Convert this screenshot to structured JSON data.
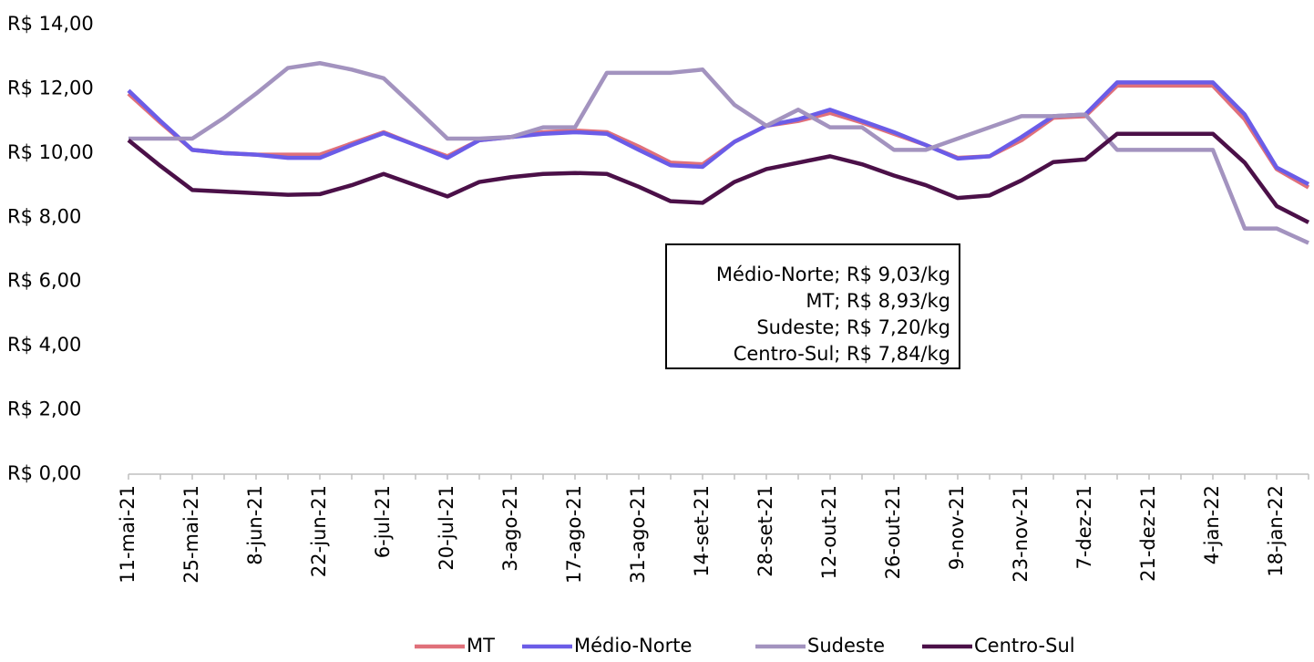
{
  "chart_data": {
    "type": "line",
    "categories": [
      "11-mai-21",
      null,
      "25-mai-21",
      null,
      "8-jun-21",
      null,
      "22-jun-21",
      null,
      "6-jul-21",
      null,
      "20-jul-21",
      null,
      "3-ago-21",
      null,
      "17-ago-21",
      null,
      "31-ago-21",
      null,
      "14-set-21",
      null,
      "28-set-21",
      null,
      "12-out-21",
      null,
      "26-out-21",
      null,
      "9-nov-21",
      null,
      "23-nov-21",
      null,
      "7-dez-21",
      null,
      "21-dez-21",
      null,
      "4-jan-22",
      null,
      "18-jan-22",
      null
    ],
    "series": [
      {
        "name": "MT",
        "color": "#e0707a",
        "values": [
          11.85,
          10.95,
          10.1,
          10.0,
          9.95,
          9.95,
          9.95,
          10.3,
          10.65,
          10.25,
          9.9,
          10.4,
          10.5,
          10.65,
          10.7,
          10.65,
          10.2,
          9.7,
          9.65,
          10.35,
          10.85,
          11.0,
          11.25,
          10.95,
          10.6,
          10.25,
          9.85,
          9.9,
          10.4,
          11.1,
          11.15,
          12.1,
          12.1,
          12.1,
          12.1,
          11.05,
          9.5,
          8.93
        ]
      },
      {
        "name": "Médio-Norte",
        "color": "#6b5ce7",
        "values": [
          11.95,
          11.0,
          10.1,
          10.0,
          9.95,
          9.85,
          9.85,
          10.25,
          10.62,
          10.25,
          9.85,
          10.4,
          10.5,
          10.6,
          10.65,
          10.6,
          10.1,
          9.62,
          9.57,
          10.35,
          10.85,
          11.05,
          11.35,
          11.0,
          10.65,
          10.25,
          9.83,
          9.9,
          10.5,
          11.15,
          11.2,
          12.2,
          12.2,
          12.2,
          12.2,
          11.2,
          9.55,
          9.03
        ]
      },
      {
        "name": "Sudeste",
        "color": "#a393bf",
        "values": [
          10.45,
          10.45,
          10.45,
          11.1,
          11.85,
          12.65,
          12.8,
          12.6,
          12.33,
          11.4,
          10.45,
          10.45,
          10.5,
          10.8,
          10.8,
          12.5,
          12.5,
          12.5,
          12.6,
          11.5,
          10.85,
          11.35,
          10.8,
          10.8,
          10.1,
          10.1,
          10.45,
          10.8,
          11.15,
          11.15,
          11.2,
          10.1,
          10.1,
          10.1,
          10.1,
          7.65,
          7.65,
          7.2
        ]
      },
      {
        "name": "Centro-Sul",
        "color": "#4b1048",
        "values": [
          10.4,
          9.6,
          8.85,
          8.8,
          8.75,
          8.7,
          8.72,
          9.0,
          9.35,
          9.0,
          8.65,
          9.1,
          9.25,
          9.35,
          9.38,
          9.35,
          8.95,
          8.5,
          8.45,
          9.1,
          9.5,
          9.7,
          9.9,
          9.65,
          9.3,
          9.0,
          8.6,
          8.68,
          9.15,
          9.72,
          9.8,
          10.6,
          10.6,
          10.6,
          10.6,
          9.7,
          8.35,
          7.84
        ]
      }
    ],
    "ylim": [
      0,
      14
    ],
    "yticks": [
      {
        "value": 0,
        "label": "R$ 0,00"
      },
      {
        "value": 2,
        "label": "R$ 2,00"
      },
      {
        "value": 4,
        "label": "R$ 4,00"
      },
      {
        "value": 6,
        "label": "R$ 6,00"
      },
      {
        "value": 8,
        "label": "R$ 8,00"
      },
      {
        "value": 10,
        "label": "R$ 10,00"
      },
      {
        "value": 12,
        "label": "R$ 12,00"
      },
      {
        "value": 14,
        "label": "R$ 14,00"
      }
    ],
    "annotations": [
      "Médio-Norte; R$ 9,03/kg",
      "MT; R$ 8,93/kg",
      "Sudeste; R$ 7,20/kg",
      "Centro-Sul; R$ 7,84/kg"
    ],
    "legend": "bottom"
  }
}
